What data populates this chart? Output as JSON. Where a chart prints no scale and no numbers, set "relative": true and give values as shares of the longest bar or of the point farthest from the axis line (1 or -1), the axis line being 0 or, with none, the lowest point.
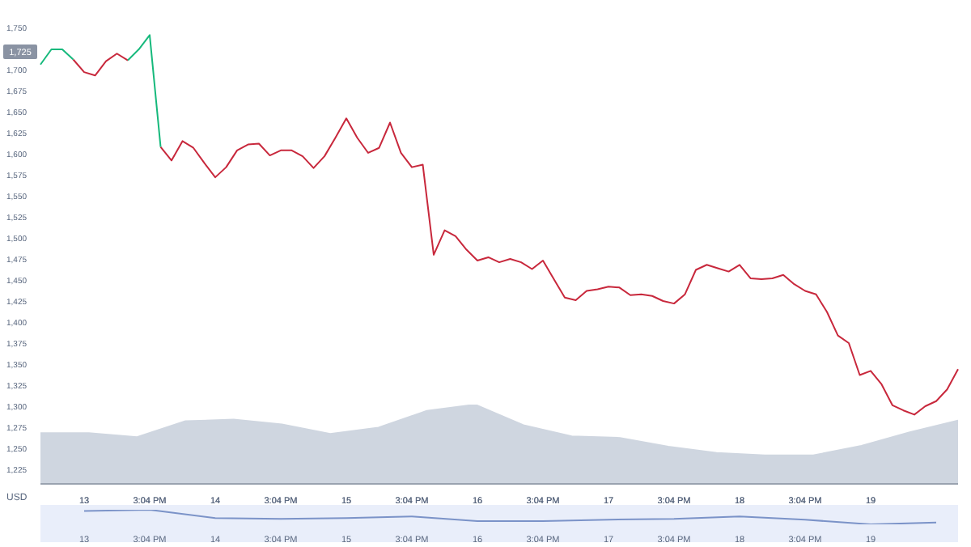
{
  "chart_data": [
    {
      "type": "line",
      "ylabel": "USD",
      "ylim": [
        1225,
        1750
      ],
      "categories": [
        null,
        null,
        null,
        null,
        "13",
        null,
        null,
        null,
        null,
        null,
        "3:04 PM",
        null,
        null,
        null,
        null,
        null,
        "14",
        null,
        null,
        null,
        null,
        null,
        "3:04 PM",
        null,
        null,
        null,
        null,
        null,
        "15",
        null,
        null,
        null,
        null,
        null,
        "3:04 PM",
        null,
        null,
        null,
        null,
        null,
        "16",
        null,
        null,
        null,
        null,
        null,
        "3:04 PM",
        null,
        null,
        null,
        null,
        null,
        "17",
        null,
        null,
        null,
        null,
        null,
        "3:04 PM",
        null,
        null,
        null,
        null,
        null,
        "18",
        null,
        null,
        null,
        null,
        null,
        "3:04 PM",
        null,
        null,
        null,
        null,
        null,
        "19",
        null,
        null,
        null,
        null,
        null,
        null,
        null,
        null
      ],
      "yticks": [
        {
          "value": 1225,
          "label": "1,225"
        },
        {
          "value": 1250,
          "label": "1,250"
        },
        {
          "value": 1275,
          "label": "1,275"
        },
        {
          "value": 1300,
          "label": "1,300"
        },
        {
          "value": 1325,
          "label": "1,325"
        },
        {
          "value": 1350,
          "label": "1,350"
        },
        {
          "value": 1375,
          "label": "1,375"
        },
        {
          "value": 1400,
          "label": "1,400"
        },
        {
          "value": 1425,
          "label": "1,425"
        },
        {
          "value": 1450,
          "label": "1,450"
        },
        {
          "value": 1475,
          "label": "1,475"
        },
        {
          "value": 1500,
          "label": "1,500"
        },
        {
          "value": 1525,
          "label": "1,525"
        },
        {
          "value": 1550,
          "label": "1,550"
        },
        {
          "value": 1575,
          "label": "1,575"
        },
        {
          "value": 1600,
          "label": "1,600"
        },
        {
          "value": 1625,
          "label": "1,625"
        },
        {
          "value": 1650,
          "label": "1,650"
        },
        {
          "value": 1675,
          "label": "1,675"
        },
        {
          "value": 1700,
          "label": "1,700"
        },
        {
          "value": 1750,
          "label": "1,750"
        }
      ],
      "annotations": [
        "1,725"
      ],
      "grid": false,
      "legend": false,
      "marker": "none",
      "line_style": "solid",
      "series": [
        {
          "color": "#c8283c",
          "values": [
            null,
            null,
            null,
            1712,
            1697,
            1693,
            1710,
            1719,
            1711,
            null,
            null,
            1608,
            1592,
            1615,
            1607,
            1589,
            1572,
            1584,
            1604,
            1611,
            1612,
            1598,
            1604,
            1604,
            1597,
            1583,
            1597,
            1619,
            1642,
            1619,
            1601,
            1607,
            1637,
            1601,
            1584,
            1587,
            1480,
            1509,
            1502,
            1486,
            1473,
            1477,
            1471,
            1475,
            1471,
            1463,
            1473,
            1451,
            1429,
            1426,
            1437,
            1439,
            1442,
            1441,
            1432,
            1433,
            1431,
            1425,
            1422,
            1433,
            1462,
            1468,
            1464,
            1460,
            1468,
            1452,
            1451,
            1452,
            1456,
            1445,
            1437,
            1433,
            1412,
            1384,
            1375,
            1337,
            1342,
            1326,
            1301,
            1295,
            1290,
            1300,
            1306,
            1320,
            1344
          ]
        },
        {
          "color": "#16b97c",
          "values": [
            1706,
            1724,
            1724,
            1712,
            null,
            null,
            null,
            null,
            1711,
            1724,
            1741,
            1608,
            null,
            null,
            null,
            null,
            null,
            null,
            null,
            null,
            null,
            null,
            null,
            null,
            null,
            null,
            null,
            null,
            null,
            null,
            null,
            null,
            null,
            null,
            null,
            null,
            null,
            null,
            null,
            null,
            null,
            null,
            null,
            null,
            null,
            null,
            null,
            null,
            null,
            null,
            null,
            null,
            null,
            null,
            null,
            null,
            null,
            null,
            null,
            null,
            null,
            null,
            null,
            null,
            null,
            null,
            null,
            null,
            null,
            null,
            null,
            null,
            null,
            null,
            null,
            null,
            null,
            null,
            null,
            null,
            null,
            null,
            null,
            null,
            null
          ]
        }
      ]
    },
    {
      "type": "area",
      "relative": true,
      "tick_labels": false,
      "categories": [
        null,
        null,
        null,
        null,
        null,
        null,
        null,
        null,
        null,
        null,
        null,
        null,
        null,
        null,
        null,
        null,
        null,
        null,
        null,
        null
      ],
      "series": [
        {
          "color": "#cfd6e0",
          "values": [
            0.64,
            0.64,
            0.59,
            0.79,
            0.81,
            0.75,
            0.63,
            0.71,
            0.92,
            1,
            0.74,
            0.6,
            0.58,
            0.47,
            0.39,
            0.36,
            0.36,
            0.48,
            0.65,
            0.8
          ]
        }
      ]
    },
    {
      "type": "line",
      "relative": true,
      "tick_labels": "x",
      "categories": [
        "13",
        "3:04 PM",
        "14",
        "3:04 PM",
        "15",
        "3:04 PM",
        "16",
        "3:04 PM",
        "17",
        "3:04 PM",
        "18",
        "3:04 PM",
        "19",
        null
      ],
      "series": [
        {
          "color": "#7b93c8",
          "values": [
            0.91,
            1,
            0.43,
            0.38,
            0.43,
            0.54,
            0.22,
            0.22,
            0.32,
            0.38,
            0.54,
            0.32,
            0,
            0.12
          ]
        }
      ]
    }
  ]
}
